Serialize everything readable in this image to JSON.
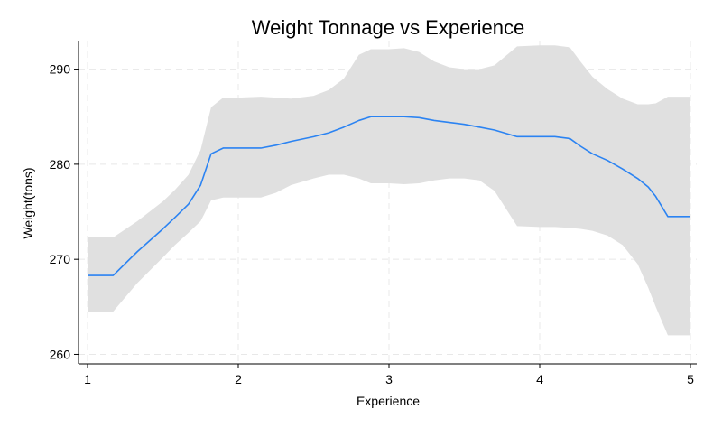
{
  "chart_data": {
    "type": "line",
    "title": "Weight Tonnage vs Experience",
    "xlabel": "Experience",
    "ylabel": "Weight(tons)",
    "xlim": [
      1,
      5
    ],
    "ylim": [
      259,
      293
    ],
    "xticks": [
      1,
      2,
      3,
      4,
      5
    ],
    "yticks": [
      260,
      270,
      280,
      290
    ],
    "xtick_labels": [
      "1",
      "2",
      "3",
      "4",
      "5"
    ],
    "ytick_labels": [
      "260",
      "270",
      "280",
      "290"
    ],
    "grid": true,
    "legend": "none",
    "colors": {
      "line": "#2b83f2",
      "band": "#e0e0e0",
      "grid": "#e8e8e8",
      "axis": "#000000"
    },
    "series": [
      {
        "x": [
          1.0,
          1.17,
          1.33,
          1.5,
          1.58,
          1.67,
          1.75,
          1.82,
          1.9,
          2.0,
          2.15,
          2.25,
          2.35,
          2.5,
          2.6,
          2.7,
          2.8,
          2.88,
          3.0,
          3.1,
          3.2,
          3.3,
          3.4,
          3.5,
          3.6,
          3.7,
          3.85,
          4.0,
          4.1,
          4.2,
          4.27,
          4.35,
          4.45,
          4.55,
          4.65,
          4.72,
          4.77,
          4.85,
          5.0
        ],
        "y": [
          268.3,
          268.3,
          270.8,
          273.2,
          274.4,
          275.8,
          277.8,
          281.1,
          281.7,
          281.7,
          281.7,
          282.0,
          282.4,
          282.9,
          283.3,
          283.9,
          284.6,
          285.0,
          285.0,
          285.0,
          284.9,
          284.6,
          284.4,
          284.2,
          283.9,
          283.6,
          282.9,
          282.9,
          282.9,
          282.7,
          281.9,
          281.1,
          280.4,
          279.5,
          278.5,
          277.6,
          276.6,
          274.5,
          274.5
        ],
        "lower": [
          264.5,
          264.5,
          267.5,
          270.2,
          271.5,
          272.8,
          274.0,
          276.2,
          276.5,
          276.5,
          276.5,
          277.0,
          277.8,
          278.5,
          278.9,
          278.9,
          278.5,
          278.0,
          278.0,
          277.9,
          278.0,
          278.3,
          278.5,
          278.5,
          278.3,
          277.2,
          273.5,
          273.4,
          273.4,
          273.3,
          273.2,
          273.0,
          272.5,
          271.5,
          269.5,
          267.0,
          265.0,
          262.0,
          262.0
        ],
        "upper": [
          272.3,
          272.3,
          274.0,
          276.1,
          277.3,
          278.9,
          281.5,
          286.0,
          287.0,
          287.0,
          287.1,
          287.0,
          286.9,
          287.2,
          287.8,
          289.0,
          291.5,
          292.1,
          292.1,
          292.2,
          291.8,
          290.8,
          290.2,
          290.0,
          290.0,
          290.4,
          292.4,
          292.5,
          292.5,
          292.3,
          290.8,
          289.2,
          287.9,
          286.9,
          286.3,
          286.3,
          286.4,
          287.1,
          287.1
        ]
      }
    ]
  }
}
